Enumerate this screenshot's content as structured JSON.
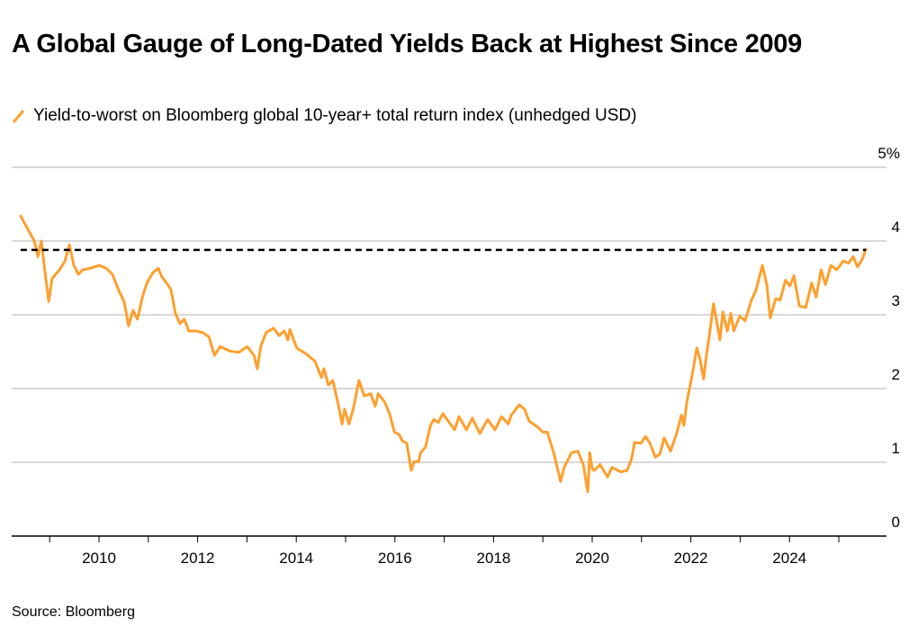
{
  "chart_data": {
    "type": "line",
    "title": "A Global Gauge of Long-Dated Yields Back at Highest Since 2009",
    "legend": [
      "Yield-to-worst on Bloomberg global 10-year+ total return index (unhedged USD)"
    ],
    "legend_placement": "top-left",
    "source": "Source: Bloomberg",
    "xlabel": "",
    "ylabel": "",
    "xlim": [
      2008.2,
      2026.5
    ],
    "ylim": [
      0,
      5
    ],
    "x_ticks": [
      2010,
      2012,
      2014,
      2016,
      2018,
      2020,
      2022,
      2024
    ],
    "x_tick_labels": [
      "2010",
      "2012",
      "2014",
      "2016",
      "2018",
      "2020",
      "2022",
      "2024"
    ],
    "y_ticks": [
      0,
      1,
      2,
      3,
      4,
      5
    ],
    "y_tick_labels": [
      "0",
      "1",
      "2",
      "3",
      "4",
      "5%"
    ],
    "grid": true,
    "reference_line": {
      "value": 3.88,
      "style": "dashed",
      "color": "#000000"
    },
    "series": [
      {
        "name": "Yield-to-worst on Bloomberg global 10-year+ total return index (unhedged USD)",
        "color": "#ff9f2e",
        "x": [
          2008.41,
          2008.49,
          2008.59,
          2008.69,
          2008.76,
          2008.83,
          2008.9,
          2008.98,
          2009.05,
          2009.12,
          2009.2,
          2009.31,
          2009.4,
          2009.49,
          2009.58,
          2009.67,
          2009.82,
          2010.0,
          2010.15,
          2010.27,
          2010.42,
          2010.51,
          2010.6,
          2010.69,
          2010.78,
          2010.88,
          2010.97,
          2011.09,
          2011.2,
          2011.28,
          2011.37,
          2011.46,
          2011.55,
          2011.64,
          2011.73,
          2011.82,
          2011.97,
          2012.1,
          2012.23,
          2012.34,
          2012.46,
          2012.65,
          2012.83,
          2013.01,
          2013.14,
          2013.21,
          2013.28,
          2013.39,
          2013.54,
          2013.65,
          2013.76,
          2013.83,
          2013.87,
          2014.01,
          2014.2,
          2014.38,
          2014.51,
          2014.56,
          2014.65,
          2014.74,
          2014.84,
          2014.93,
          2014.98,
          2015.07,
          2015.16,
          2015.27,
          2015.38,
          2015.51,
          2015.6,
          2015.66,
          2015.79,
          2015.89,
          2015.99,
          2016.08,
          2016.15,
          2016.24,
          2016.33,
          2016.39,
          2016.48,
          2016.52,
          2016.62,
          2016.72,
          2016.79,
          2016.88,
          2016.97,
          2017.08,
          2017.21,
          2017.3,
          2017.45,
          2017.57,
          2017.72,
          2017.88,
          2018.03,
          2018.16,
          2018.3,
          2018.36,
          2018.52,
          2018.63,
          2018.72,
          2018.89,
          2019.0,
          2019.09,
          2019.22,
          2019.36,
          2019.43,
          2019.58,
          2019.71,
          2019.82,
          2019.91,
          2019.95,
          2020.0,
          2020.04,
          2020.16,
          2020.31,
          2020.4,
          2020.58,
          2020.71,
          2020.8,
          2020.86,
          2020.99,
          2021.08,
          2021.17,
          2021.28,
          2021.37,
          2021.46,
          2021.59,
          2021.72,
          2021.81,
          2021.86,
          2021.92,
          2021.99,
          2022.04,
          2022.12,
          2022.19,
          2022.26,
          2022.32,
          2022.37,
          2022.46,
          2022.59,
          2022.65,
          2022.74,
          2022.81,
          2022.87,
          2022.99,
          2023.1,
          2023.23,
          2023.32,
          2023.45,
          2023.54,
          2023.61,
          2023.72,
          2023.81,
          2023.92,
          2024.01,
          2024.09,
          2024.2,
          2024.33,
          2024.45,
          2024.54,
          2024.64,
          2024.73,
          2024.84,
          2024.96,
          2025.09,
          2025.2,
          2025.29,
          2025.38,
          2025.48,
          2025.55
        ],
        "y": [
          4.34,
          4.24,
          4.12,
          4.0,
          3.79,
          4.0,
          3.61,
          3.18,
          3.49,
          3.55,
          3.61,
          3.73,
          3.95,
          3.67,
          3.55,
          3.61,
          3.63,
          3.67,
          3.63,
          3.55,
          3.3,
          3.18,
          2.85,
          3.06,
          2.94,
          3.24,
          3.43,
          3.57,
          3.63,
          3.51,
          3.43,
          3.34,
          3.02,
          2.88,
          2.94,
          2.78,
          2.78,
          2.76,
          2.7,
          2.45,
          2.57,
          2.51,
          2.49,
          2.57,
          2.45,
          2.27,
          2.57,
          2.76,
          2.82,
          2.72,
          2.78,
          2.66,
          2.8,
          2.55,
          2.47,
          2.37,
          2.15,
          2.27,
          2.05,
          2.11,
          1.82,
          1.52,
          1.72,
          1.52,
          1.74,
          2.11,
          1.9,
          1.93,
          1.76,
          1.93,
          1.82,
          1.66,
          1.41,
          1.38,
          1.29,
          1.26,
          0.89,
          1.01,
          1.01,
          1.13,
          1.21,
          1.5,
          1.58,
          1.54,
          1.66,
          1.56,
          1.44,
          1.62,
          1.44,
          1.6,
          1.39,
          1.58,
          1.44,
          1.62,
          1.52,
          1.64,
          1.78,
          1.72,
          1.56,
          1.48,
          1.41,
          1.41,
          1.13,
          0.74,
          0.93,
          1.13,
          1.15,
          0.97,
          0.6,
          1.13,
          0.91,
          0.89,
          0.97,
          0.8,
          0.93,
          0.87,
          0.89,
          1.05,
          1.27,
          1.26,
          1.35,
          1.26,
          1.07,
          1.11,
          1.33,
          1.15,
          1.41,
          1.64,
          1.5,
          1.82,
          2.06,
          2.23,
          2.55,
          2.39,
          2.13,
          2.47,
          2.69,
          3.15,
          2.66,
          3.04,
          2.78,
          3.02,
          2.78,
          2.98,
          2.92,
          3.2,
          3.33,
          3.67,
          3.41,
          2.96,
          3.22,
          3.2,
          3.47,
          3.39,
          3.53,
          3.12,
          3.1,
          3.43,
          3.24,
          3.61,
          3.41,
          3.67,
          3.61,
          3.73,
          3.7,
          3.79,
          3.65,
          3.76,
          3.89
        ]
      }
    ]
  }
}
